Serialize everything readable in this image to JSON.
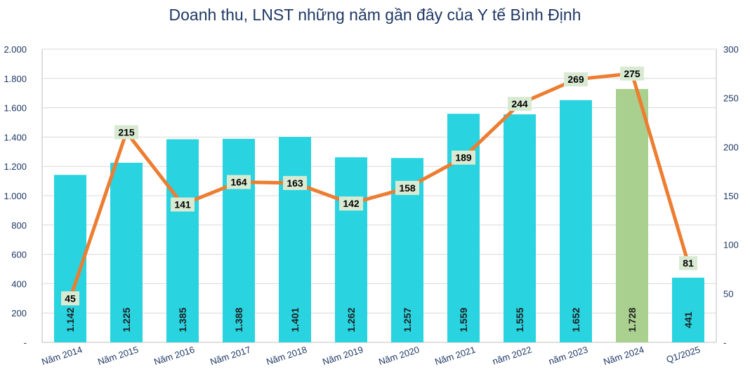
{
  "chart_data": {
    "type": "bar",
    "title": "Doanh thu, LNST những năm gần đây của Y tế Bình Định",
    "categories": [
      "Năm 2014",
      "Năm 2015",
      "Năm 2016",
      "Năm 2017",
      "Năm 2018",
      "Năm 2019",
      "Năm 2020",
      "Năm 2021",
      "năm 2022",
      "năm 2023",
      "Năm 2024",
      "Q1/2025"
    ],
    "series": [
      {
        "type": "bar",
        "axis": "left",
        "values": [
          1142,
          1225,
          1385,
          1388,
          1401,
          1262,
          1257,
          1559,
          1555,
          1652,
          1728,
          441
        ],
        "labels": [
          "1.142",
          "1.225",
          "1.385",
          "1.388",
          "1.401",
          "1.262",
          "1.257",
          "1.559",
          "1.555",
          "1.652",
          "1.728",
          "441"
        ],
        "color": "#29d3e0",
        "highlight_color": "#a9d08e",
        "highlight_index": 10
      },
      {
        "type": "line",
        "axis": "right",
        "values": [
          45,
          215,
          141,
          164,
          163,
          142,
          158,
          189,
          244,
          269,
          275,
          81
        ],
        "color": "#ed7d31",
        "label_bg": "#d9ead3"
      }
    ],
    "y_left": {
      "ylim": [
        0,
        2000
      ],
      "ticks": [
        0,
        200,
        400,
        600,
        800,
        1000,
        1200,
        1400,
        1600,
        1800,
        2000
      ],
      "tick_labels": [
        "-",
        "200",
        "400",
        "600",
        "800",
        "1.000",
        "1.200",
        "1.400",
        "1.600",
        "1.800",
        "2.000"
      ]
    },
    "y_right": {
      "ylim": [
        0,
        300
      ],
      "ticks": [
        0,
        50,
        100,
        150,
        200,
        250,
        300
      ],
      "tick_labels": [
        "-",
        "50",
        "100",
        "150",
        "200",
        "250",
        "300"
      ]
    },
    "grid": true,
    "legend": "none"
  }
}
